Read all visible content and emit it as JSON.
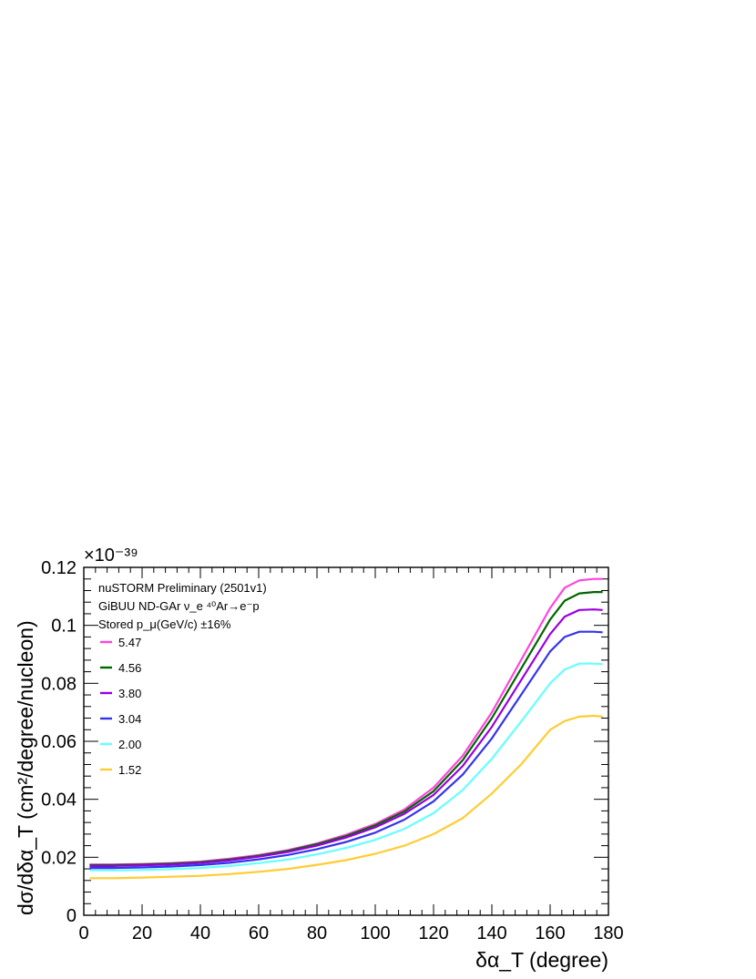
{
  "chart_data": {
    "type": "line",
    "xlabel": "δα_T (degree)",
    "ylabel": "dσ/dδα_T (cm²/degree/nucleon)",
    "multiplier": "×10⁻³⁹",
    "xlim": [
      0,
      180
    ],
    "ylim": [
      0,
      0.12
    ],
    "xticks": [
      0,
      20,
      40,
      60,
      80,
      100,
      120,
      140,
      160,
      180
    ],
    "yticks": [
      0,
      0.02,
      0.04,
      0.06,
      0.08,
      0.1,
      0.12
    ],
    "legend_placement": "top-left",
    "grid": false,
    "annotations": [
      "nuSTORM Preliminary (2501v1)",
      "GiBUU ND-GAr ν_e ⁴⁰Ar→e⁻p",
      "Stored p_μ(GeV/c) ±16%"
    ],
    "x": [
      2,
      10,
      20,
      30,
      40,
      50,
      60,
      70,
      80,
      90,
      100,
      110,
      120,
      130,
      140,
      150,
      160,
      165,
      170,
      175,
      178
    ],
    "series": [
      {
        "name": "5.47",
        "color": "#ff44dd",
        "values": [
          0.0175,
          0.0175,
          0.0177,
          0.018,
          0.0185,
          0.0195,
          0.0208,
          0.0225,
          0.0248,
          0.0278,
          0.0315,
          0.0365,
          0.044,
          0.055,
          0.07,
          0.088,
          0.106,
          0.113,
          0.1155,
          0.116,
          0.116
        ]
      },
      {
        "name": "4.56",
        "color": "#006600",
        "values": [
          0.0173,
          0.0173,
          0.0175,
          0.0178,
          0.0183,
          0.0192,
          0.0205,
          0.0222,
          0.0245,
          0.0273,
          0.031,
          0.0358,
          0.0428,
          0.0535,
          0.068,
          0.085,
          0.102,
          0.1085,
          0.111,
          0.1115,
          0.1115
        ]
      },
      {
        "name": "3.80",
        "color": "#9900dd",
        "values": [
          0.017,
          0.017,
          0.0172,
          0.0175,
          0.018,
          0.0189,
          0.0202,
          0.0218,
          0.024,
          0.0268,
          0.0303,
          0.035,
          0.0415,
          0.0515,
          0.065,
          0.081,
          0.097,
          0.103,
          0.1053,
          0.1055,
          0.1053
        ]
      },
      {
        "name": "3.04",
        "color": "#3333ee",
        "values": [
          0.0163,
          0.0163,
          0.0165,
          0.0168,
          0.0173,
          0.0181,
          0.0193,
          0.0208,
          0.0228,
          0.0253,
          0.0285,
          0.033,
          0.0393,
          0.0485,
          0.061,
          0.076,
          0.091,
          0.096,
          0.0978,
          0.0978,
          0.0976
        ]
      },
      {
        "name": "2.00",
        "color": "#66ffff",
        "values": [
          0.0155,
          0.0155,
          0.0156,
          0.0159,
          0.0163,
          0.017,
          0.018,
          0.0192,
          0.021,
          0.0232,
          0.026,
          0.0298,
          0.0352,
          0.0432,
          0.054,
          0.0668,
          0.08,
          0.0848,
          0.0868,
          0.0868,
          0.0866
        ]
      },
      {
        "name": "1.52",
        "color": "#ffcc33",
        "values": [
          0.0128,
          0.0128,
          0.013,
          0.0133,
          0.0136,
          0.0142,
          0.015,
          0.016,
          0.0174,
          0.019,
          0.0212,
          0.024,
          0.028,
          0.0335,
          0.042,
          0.052,
          0.064,
          0.067,
          0.0685,
          0.0688,
          0.0685
        ]
      }
    ]
  }
}
